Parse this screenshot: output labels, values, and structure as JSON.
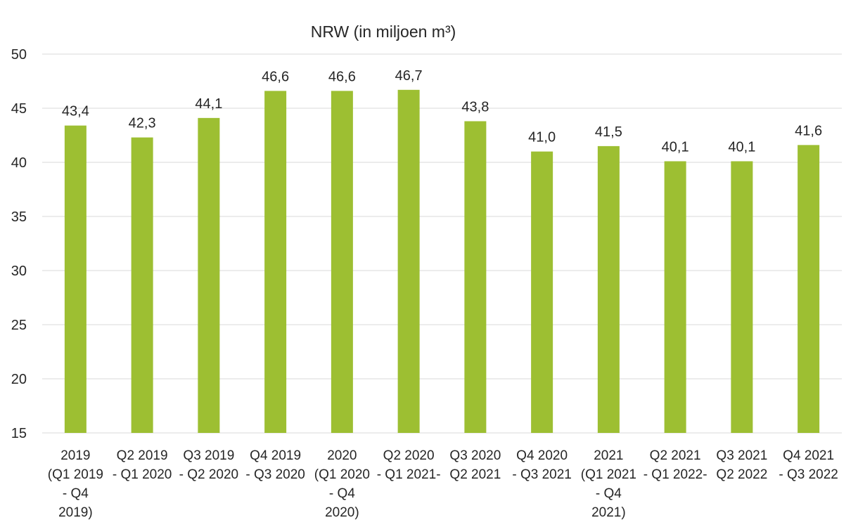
{
  "chart_data": {
    "type": "bar",
    "title": "NRW (in miljoen m³)",
    "xlabel": "",
    "ylabel": "",
    "ylim": [
      15,
      50
    ],
    "yticks": [
      15,
      20,
      25,
      30,
      35,
      40,
      45,
      50
    ],
    "grid": true,
    "legend": "none",
    "bar_color": "#9dbf32",
    "categories": [
      [
        "2019",
        "(Q1 2019",
        "- Q4",
        "2019)"
      ],
      [
        "Q2 2019",
        "- Q1 2020"
      ],
      [
        "Q3 2019",
        "- Q2 2020"
      ],
      [
        "Q4 2019",
        "- Q3 2020"
      ],
      [
        "2020",
        "(Q1 2020",
        "- Q4",
        "2020)"
      ],
      [
        "Q2 2020",
        "- Q1 2021-"
      ],
      [
        "Q3 2020",
        "Q2 2021"
      ],
      [
        "Q4 2020",
        "- Q3 2021"
      ],
      [
        "2021",
        "(Q1 2021",
        "- Q4",
        "2021)"
      ],
      [
        "Q2 2021",
        "- Q1 2022-"
      ],
      [
        "Q3 2021",
        "Q2 2022"
      ],
      [
        "Q4 2021",
        "- Q3 2022"
      ]
    ],
    "values": [
      43.4,
      42.3,
      44.1,
      46.6,
      46.6,
      46.7,
      43.8,
      41.0,
      41.5,
      40.1,
      40.1,
      41.6
    ],
    "data_labels": [
      "43,4",
      "42,3",
      "44,1",
      "46,6",
      "46,6",
      "46,7",
      "43,8",
      "41,0",
      "41,5",
      "40,1",
      "40,1",
      "41,6"
    ]
  }
}
